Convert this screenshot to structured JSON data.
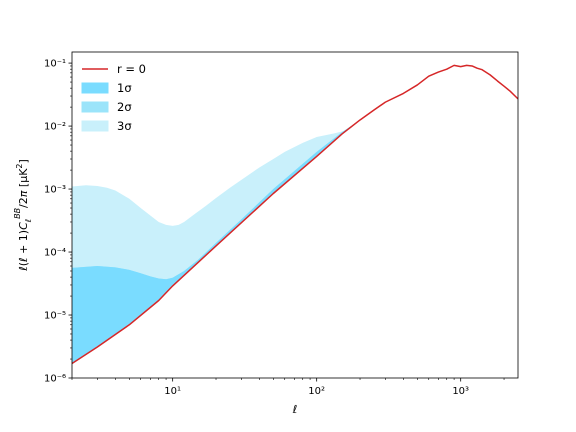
{
  "chart_data": {
    "type": "area",
    "xlabel": "ℓ",
    "ylabel": "ℓ(ℓ + 1)C_ℓ^BB/2π [μK²]",
    "xscale": "log",
    "yscale": "log",
    "xlim": [
      2,
      2500
    ],
    "ylim": [
      1e-06,
      0.15
    ],
    "legend_placement": "top-left",
    "grid": false,
    "x_ticks": [
      {
        "value": 10,
        "label": "10¹"
      },
      {
        "value": 100,
        "label": "10²"
      },
      {
        "value": 1000,
        "label": "10³"
      }
    ],
    "y_ticks": [
      {
        "value": 1e-06,
        "label": "10⁻⁶"
      },
      {
        "value": 1e-05,
        "label": "10⁻⁵"
      },
      {
        "value": 0.0001,
        "label": "10⁻⁴"
      },
      {
        "value": 0.001,
        "label": "10⁻³"
      },
      {
        "value": 0.01,
        "label": "10⁻²"
      },
      {
        "value": 0.1,
        "label": "10⁻¹"
      }
    ],
    "series": [
      {
        "name": "r = 0",
        "kind": "line",
        "color": "#d62728",
        "x": [
          2,
          3,
          5,
          8,
          10,
          20,
          50,
          100,
          150,
          200,
          250,
          300,
          400,
          500,
          600,
          700,
          800,
          900,
          1000,
          1100,
          1200,
          1300,
          1400,
          1600,
          1800,
          2000,
          2200,
          2500
        ],
        "y": [
          1.7e-06,
          3.1e-06,
          7e-06,
          1.7e-05,
          2.9e-05,
          0.000125,
          0.00085,
          0.0033,
          0.0075,
          0.0125,
          0.018,
          0.024,
          0.033,
          0.045,
          0.062,
          0.072,
          0.08,
          0.092,
          0.088,
          0.092,
          0.09,
          0.083,
          0.079,
          0.065,
          0.052,
          0.043,
          0.036,
          0.027
        ]
      },
      {
        "name": "1σ",
        "kind": "band",
        "color": "#7adcff",
        "x": [
          2,
          3,
          4,
          5,
          6,
          7,
          8,
          9,
          10,
          12,
          15,
          20,
          30,
          50,
          100,
          150,
          200
        ],
        "y": [
          5.6e-05,
          6e-05,
          5.7e-05,
          5.2e-05,
          4.6e-05,
          4.1e-05,
          3.8e-05,
          3.7e-05,
          3.9e-05,
          5e-05,
          7.5e-05,
          0.00014,
          0.00033,
          0.001,
          0.0039,
          0.008,
          0.0125
        ]
      },
      {
        "name": "2σ",
        "kind": "band",
        "color": "#9be4fa",
        "x": [
          2,
          3,
          4,
          5,
          6,
          7,
          8,
          9,
          10,
          12,
          15,
          20,
          30,
          50,
          100,
          150,
          200
        ],
        "y": [
          5.6e-05,
          6e-05,
          5.7e-05,
          5.2e-05,
          4.6e-05,
          4.1e-05,
          3.8e-05,
          3.7e-05,
          3.9e-05,
          5e-05,
          7.5e-05,
          0.00014,
          0.00033,
          0.001,
          0.0039,
          0.008,
          0.0125
        ]
      },
      {
        "name": "3σ",
        "kind": "band",
        "color": "#c9f0fb",
        "x": [
          2,
          2.5,
          3,
          3.5,
          4,
          5,
          6,
          7,
          8,
          9,
          10,
          11,
          12,
          14,
          17,
          20,
          25,
          30,
          40,
          50,
          60,
          80,
          100,
          130,
          150,
          170,
          200
        ],
        "y": [
          0.0011,
          0.00115,
          0.00112,
          0.00105,
          0.00095,
          0.0007,
          0.0005,
          0.00038,
          0.0003,
          0.00027,
          0.00026,
          0.00027,
          0.0003,
          0.00039,
          0.00054,
          0.00072,
          0.00105,
          0.0014,
          0.0022,
          0.003,
          0.0039,
          0.0054,
          0.0067,
          0.0076,
          0.0082,
          0.009,
          0.0125
        ]
      }
    ]
  }
}
